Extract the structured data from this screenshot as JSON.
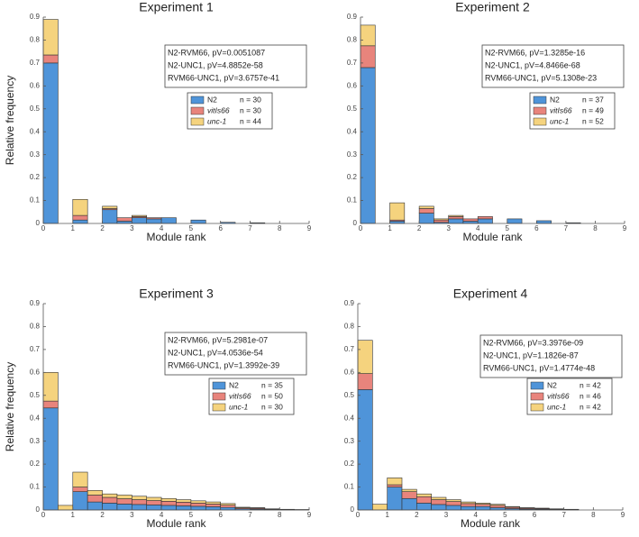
{
  "chart_data": [
    {
      "type": "histogram",
      "title": "Experiment 1",
      "xlabel": "Module rank",
      "ylabel": "Relative frequency",
      "annotations": [
        "N2-RVM66, pV=0.0051087",
        "N2-UNC1, pV=4.8852e-58",
        "RVM66-UNC1, pV=3.6757e-41"
      ],
      "bins": [
        0,
        0.5,
        1,
        1.5,
        2,
        2.5,
        3,
        3.5,
        4,
        4.5,
        5,
        5.5,
        6,
        6.5,
        7,
        7.5,
        8,
        8.5,
        9
      ],
      "series": [
        {
          "name": "N2",
          "n_label": "n = 30",
          "color": "#4f94d9",
          "values": [
            0.7,
            0,
            0.015,
            0,
            0.06,
            0.01,
            0.025,
            0.02,
            0.025,
            0,
            0.015,
            0,
            0.005,
            0,
            0.003,
            0,
            0,
            0
          ]
        },
        {
          "name": "vitIs66",
          "n_label": "n = 30",
          "color": "#e8847c",
          "values": [
            0.035,
            0,
            0.02,
            0,
            0.005,
            0.015,
            0.005,
            0.005,
            0,
            0,
            0,
            0,
            0,
            0,
            0,
            0,
            0,
            0
          ]
        },
        {
          "name": "unc-1",
          "n_label": "n = 44",
          "color": "#f5d37e",
          "values": [
            0.155,
            0,
            0.07,
            0,
            0.01,
            0,
            0.005,
            0,
            0,
            0,
            0,
            0,
            0,
            0,
            0,
            0,
            0,
            0
          ]
        }
      ],
      "xlim": [
        0,
        9
      ],
      "xticks": [
        0,
        1,
        2,
        3,
        4,
        5,
        6,
        7,
        8,
        9
      ],
      "ylim": [
        0,
        0.9
      ],
      "yticks": [
        0,
        0.1,
        0.2,
        0.3,
        0.4,
        0.5,
        0.6,
        0.7,
        0.8,
        0.9
      ]
    },
    {
      "type": "histogram",
      "title": "Experiment 2",
      "xlabel": "Module rank",
      "annotations": [
        "N2-RVM66, pV=1.3285e-16",
        "N2-UNC1, pV=4.8466e-68",
        "RVM66-UNC1, pV=5.1308e-23"
      ],
      "bins": [
        0,
        0.5,
        1,
        1.5,
        2,
        2.5,
        3,
        3.5,
        4,
        4.5,
        5,
        5.5,
        6,
        6.5,
        7,
        7.5,
        8,
        8.5,
        9
      ],
      "series": [
        {
          "name": "N2",
          "n_label": "n = 37",
          "color": "#4f94d9",
          "values": [
            0.68,
            0,
            0.01,
            0,
            0.045,
            0.005,
            0.02,
            0.01,
            0.02,
            0,
            0.02,
            0,
            0.012,
            0,
            0.003,
            0,
            0,
            0
          ]
        },
        {
          "name": "vitIs66",
          "n_label": "n = 49",
          "color": "#e8847c",
          "values": [
            0.095,
            0,
            0.005,
            0,
            0.02,
            0.01,
            0.01,
            0.01,
            0.01,
            0,
            0,
            0,
            0,
            0,
            0,
            0,
            0,
            0
          ]
        },
        {
          "name": "unc-1",
          "n_label": "n = 52",
          "color": "#f5d37e",
          "values": [
            0.09,
            0,
            0.075,
            0,
            0.01,
            0.005,
            0.005,
            0,
            0,
            0,
            0,
            0,
            0,
            0,
            0,
            0,
            0,
            0
          ]
        }
      ],
      "xlim": [
        0,
        9
      ],
      "xticks": [
        0,
        1,
        2,
        3,
        4,
        5,
        6,
        7,
        8,
        9
      ],
      "ylim": [
        0,
        0.9
      ],
      "yticks": [
        0,
        0.1,
        0.2,
        0.3,
        0.4,
        0.5,
        0.6,
        0.7,
        0.8,
        0.9
      ]
    },
    {
      "type": "histogram",
      "title": "Experiment 3",
      "xlabel": "Module rank",
      "ylabel": "Relative frequency",
      "annotations": [
        "N2-RVM66, pV=5.2981e-07",
        "N2-UNC1, pV=4.0536e-54",
        "RVM66-UNC1, pV=1.3992e-39"
      ],
      "bins": [
        0,
        0.5,
        1,
        1.5,
        2,
        2.5,
        3,
        3.5,
        4,
        4.5,
        5,
        5.5,
        6,
        6.5,
        7,
        7.5,
        8,
        8.5,
        9
      ],
      "series": [
        {
          "name": "N2",
          "n_label": "n = 35",
          "color": "#4f94d9",
          "values": [
            0.445,
            0,
            0.08,
            0.035,
            0.03,
            0.026,
            0.024,
            0.022,
            0.02,
            0.018,
            0.016,
            0.014,
            0.011,
            0.005,
            0.004,
            0.002,
            0.001,
            0.001
          ]
        },
        {
          "name": "vitIs66",
          "n_label": "n = 50",
          "color": "#e8847c",
          "values": [
            0.03,
            0,
            0.02,
            0.03,
            0.025,
            0.023,
            0.021,
            0.019,
            0.018,
            0.016,
            0.014,
            0.012,
            0.01,
            0.004,
            0.004,
            0.002,
            0.001,
            0.001
          ]
        },
        {
          "name": "unc-1",
          "n_label": "n = 30",
          "color": "#f5d37e",
          "values": [
            0.125,
            0.02,
            0.065,
            0.02,
            0.015,
            0.016,
            0.015,
            0.014,
            0.012,
            0.011,
            0.01,
            0.009,
            0.007,
            0.003,
            0.002,
            0.001,
            0.001,
            0
          ]
        }
      ],
      "xlim": [
        0,
        9
      ],
      "xticks": [
        0,
        1,
        2,
        3,
        4,
        5,
        6,
        7,
        8,
        9
      ],
      "ylim": [
        0,
        0.9
      ],
      "yticks": [
        0,
        0.1,
        0.2,
        0.3,
        0.4,
        0.5,
        0.6,
        0.7,
        0.8,
        0.9
      ]
    },
    {
      "type": "histogram",
      "title": "Experiment 4",
      "xlabel": "Module rank",
      "annotations": [
        "N2-RVM66, pV=3.3976e-09",
        "N2-UNC1, pV=1.1826e-87",
        "RVM66-UNC1, pV=1.4774e-48"
      ],
      "bins": [
        0,
        0.5,
        1,
        1.5,
        2,
        2.5,
        3,
        3.5,
        4,
        4.5,
        5,
        5.5,
        6,
        6.5,
        7,
        7.5,
        8,
        8.5,
        9
      ],
      "series": [
        {
          "name": "N2",
          "n_label": "n = 42",
          "color": "#4f94d9",
          "values": [
            0.525,
            0,
            0.1,
            0.05,
            0.03,
            0.024,
            0.02,
            0.015,
            0.015,
            0.01,
            0.006,
            0.004,
            0.003,
            0.002,
            0.001,
            0,
            0,
            0
          ]
        },
        {
          "name": "vitIs66",
          "n_label": "n = 46",
          "color": "#e8847c",
          "values": [
            0.07,
            0,
            0.01,
            0.03,
            0.028,
            0.021,
            0.017,
            0.013,
            0.01,
            0.01,
            0.006,
            0.004,
            0.003,
            0.002,
            0.001,
            0,
            0,
            0
          ]
        },
        {
          "name": "unc-1",
          "n_label": "n = 42",
          "color": "#f5d37e",
          "values": [
            0.145,
            0.025,
            0.03,
            0.01,
            0.012,
            0.01,
            0.008,
            0.007,
            0.005,
            0.005,
            0.003,
            0.002,
            0.002,
            0.001,
            0.001,
            0,
            0,
            0
          ]
        }
      ],
      "xlim": [
        0,
        9
      ],
      "xticks": [
        0,
        1,
        2,
        3,
        4,
        5,
        6,
        7,
        8,
        9
      ],
      "ylim": [
        0,
        0.9
      ],
      "yticks": [
        0,
        0.1,
        0.2,
        0.3,
        0.4,
        0.5,
        0.6,
        0.7,
        0.8,
        0.9
      ]
    }
  ]
}
